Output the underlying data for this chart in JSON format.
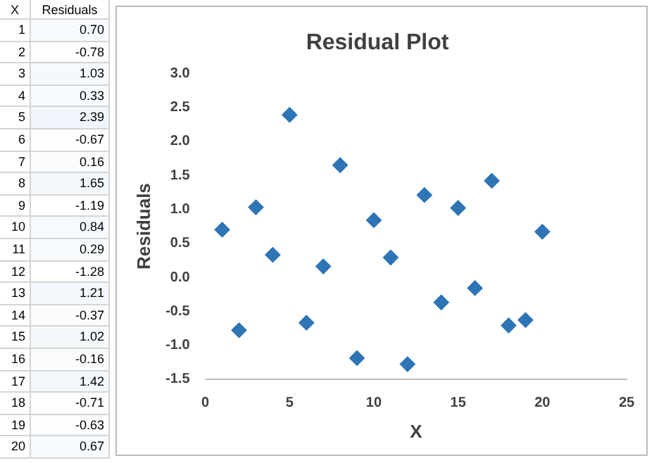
{
  "chart_data": [
    {
      "type": "heatmap",
      "ylabel": "X",
      "categories": [
        "Residuals"
      ],
      "y_categories": [
        "1",
        "2",
        "3",
        "4",
        "5",
        "6",
        "7",
        "8",
        "9",
        "10",
        "11",
        "12",
        "13",
        "14",
        "15",
        "16",
        "17",
        "18",
        "19",
        "20"
      ],
      "cells": [
        [
          0.7
        ],
        [
          -0.78
        ],
        [
          1.03
        ],
        [
          0.33
        ],
        [
          2.39
        ],
        [
          -0.67
        ],
        [
          0.16
        ],
        [
          1.65
        ],
        [
          -1.19
        ],
        [
          0.84
        ],
        [
          0.29
        ],
        [
          -1.28
        ],
        [
          1.21
        ],
        [
          -0.37
        ],
        [
          1.02
        ],
        [
          -0.16
        ],
        [
          1.42
        ],
        [
          -0.71
        ],
        [
          -0.63
        ],
        [
          0.67
        ]
      ],
      "cell_labels": [
        [
          "0.70"
        ],
        [
          "-0.78"
        ],
        [
          "1.03"
        ],
        [
          "0.33"
        ],
        [
          "2.39"
        ],
        [
          "-0.67"
        ],
        [
          "0.16"
        ],
        [
          "1.65"
        ],
        [
          "-1.19"
        ],
        [
          "0.84"
        ],
        [
          "0.29"
        ],
        [
          "-1.28"
        ],
        [
          "1.21"
        ],
        [
          "-0.37"
        ],
        [
          "1.02"
        ],
        [
          "-0.16"
        ],
        [
          "1.42"
        ],
        [
          "-0.71"
        ],
        [
          "-0.63"
        ],
        [
          "0.67"
        ]
      ]
    },
    {
      "type": "scatter",
      "title": "Residual Plot",
      "xlabel": "X",
      "ylabel": "Residuals",
      "x": [
        1,
        2,
        3,
        4,
        5,
        6,
        7,
        8,
        9,
        10,
        11,
        12,
        13,
        14,
        15,
        16,
        17,
        18,
        19,
        20
      ],
      "series": [
        {
          "color": "#2e75b6",
          "values": [
            0.7,
            -0.78,
            1.03,
            0.33,
            2.39,
            -0.67,
            0.16,
            1.65,
            -1.19,
            0.84,
            0.29,
            -1.28,
            1.21,
            -0.37,
            1.02,
            -0.16,
            1.42,
            -0.71,
            -0.63,
            0.67
          ]
        }
      ],
      "xlim": [
        0,
        25
      ],
      "xticks": [
        0,
        5,
        10,
        15,
        20,
        25
      ],
      "ylim": [
        -1.5,
        3.0
      ],
      "yticks": [
        {
          "value": -1.5,
          "label": "-1.5"
        },
        {
          "value": -1.0,
          "label": "-1.0"
        },
        {
          "value": -0.5,
          "label": "-0.5"
        },
        {
          "value": 0,
          "label": "0.0"
        },
        {
          "value": 0.5,
          "label": "0.5"
        },
        {
          "value": 1.0,
          "label": "1.0"
        },
        {
          "value": 1.5,
          "label": "1.5"
        },
        {
          "value": 2.0,
          "label": "2.0"
        },
        {
          "value": 2.5,
          "label": "2.5"
        },
        {
          "value": 3.0,
          "label": "3.0"
        }
      ],
      "grid": false,
      "legend": false,
      "marker": "diamond"
    }
  ]
}
